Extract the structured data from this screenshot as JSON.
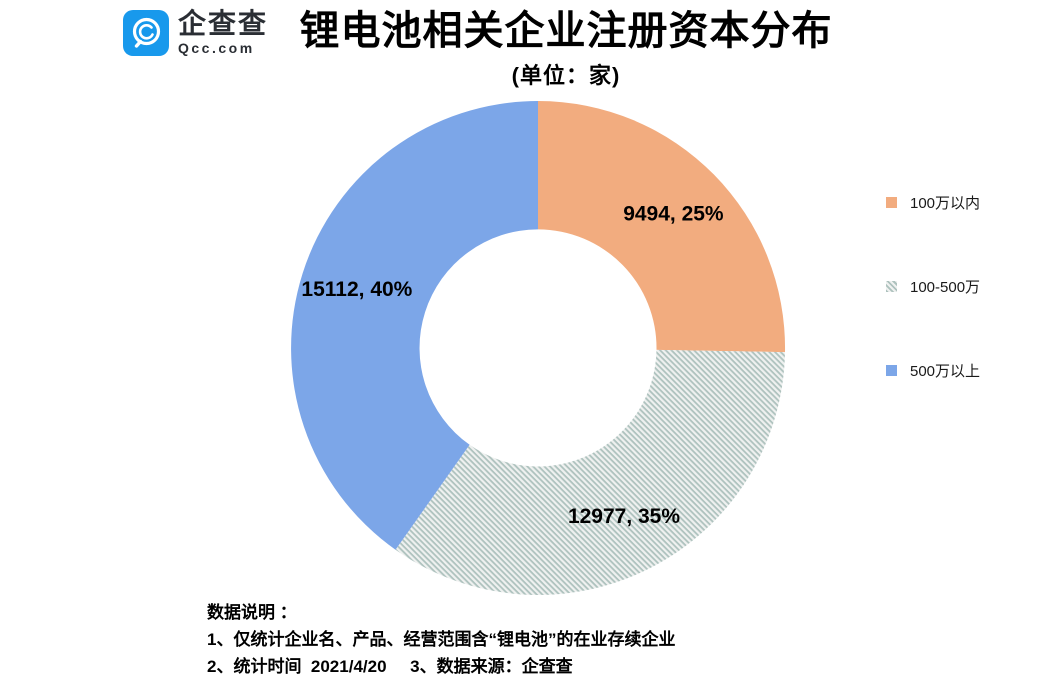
{
  "header": {
    "logo": {
      "brand_cn": "企查查",
      "brand_en": "Qcc.com",
      "icon_color": "#1899EC"
    },
    "title": "锂电池相关企业注册资本分布",
    "subtitle": "(单位：家)"
  },
  "chart_data": {
    "type": "pie",
    "subtype": "donut",
    "title": "锂电池相关企业注册资本分布",
    "unit_note": "(单位：家)",
    "categories": [
      "100万以内",
      "100-500万",
      "500万以上"
    ],
    "values": [
      9494,
      12977,
      15112
    ],
    "percents": [
      25,
      35,
      40
    ],
    "slugs": [
      "under-100w",
      "100-500w",
      "over-500w"
    ],
    "colors": [
      "#F2AC7F",
      "hatch",
      "#7CA6E8"
    ],
    "hatch_style": {
      "stripe_color": "#AEC2BE",
      "background": "#EFF1F0",
      "orientation": "down-diagonal"
    },
    "start_angle_deg": 0,
    "direction": "clockwise",
    "inner_radius_ratio": 0.48,
    "legend_position": "right",
    "label_format": "value, percent%"
  },
  "legend": {
    "items": [
      {
        "label": "100万以内",
        "swatch": "solid-orange"
      },
      {
        "label": "100-500万",
        "swatch": "hatch"
      },
      {
        "label": "500万以上",
        "swatch": "solid-blue"
      }
    ]
  },
  "footer": {
    "lines": [
      "数据说明 ：",
      "1、仅统计企业名、产品、经营范围含“锂电池”的在业存续企业",
      "2、统计时间  2021/4/20     3、数据来源：企查查"
    ]
  }
}
